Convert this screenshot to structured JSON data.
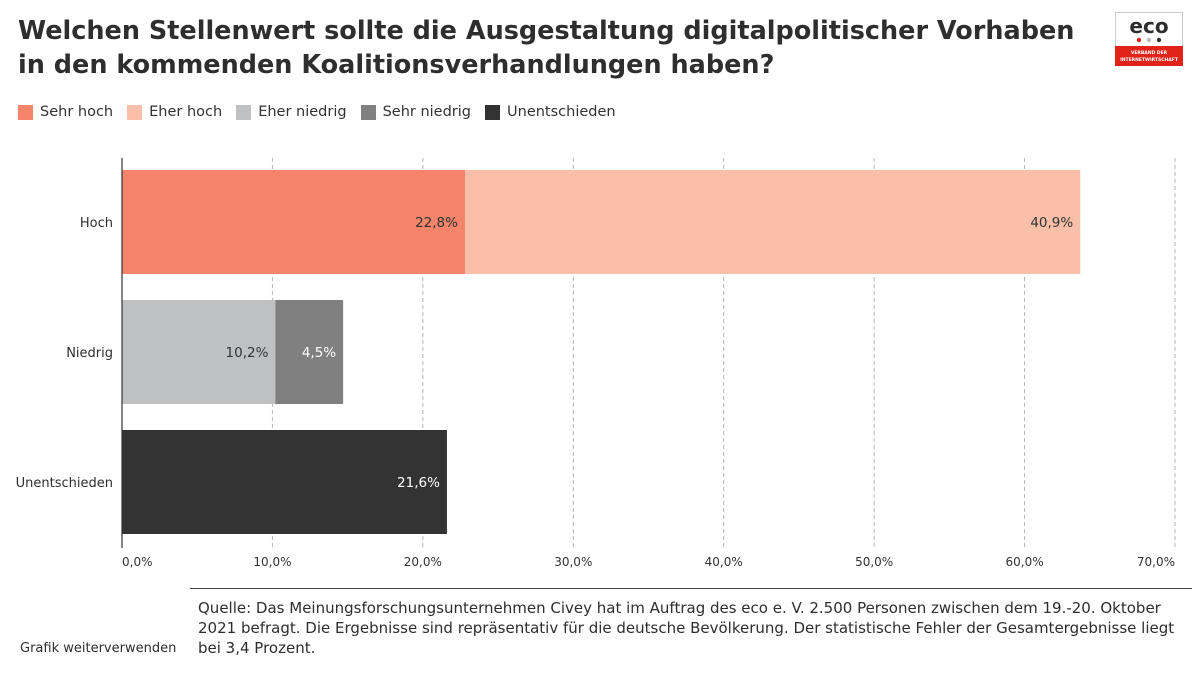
{
  "header": {
    "title": "Welchen Stellenwert sollte die Ausgestaltung digitalpolitischer Vorhaben in den kommenden Koalitionsverhandlungen haben?"
  },
  "logo": {
    "text": "eco",
    "subtitle_line1": "VERBAND DER",
    "subtitle_line2": "INTERNETWIRTSCHAFT",
    "color": "#e2231a"
  },
  "legend": [
    {
      "label": "Sehr hoch",
      "color": "#f4856a"
    },
    {
      "label": "Eher hoch",
      "color": "#f9bfa8"
    },
    {
      "label": "Eher niedrig",
      "color": "#bfc0c2"
    },
    {
      "label": "Sehr niedrig",
      "color": "#808080"
    },
    {
      "label": "Unentschieden",
      "color": "#333333"
    }
  ],
  "chart_data": {
    "type": "bar",
    "orientation": "horizontal",
    "stacked": true,
    "title": "Welchen Stellenwert sollte die Ausgestaltung digitalpolitischer Vorhaben in den kommenden Koalitionsverhandlungen haben?",
    "categories": [
      "Hoch",
      "Niedrig",
      "Unentschieden"
    ],
    "series": [
      {
        "name": "Sehr hoch",
        "color": "#f4856a",
        "label_color": "#333333",
        "values": [
          22.8,
          null,
          null
        ],
        "labels": [
          "22,8%",
          "",
          ""
        ]
      },
      {
        "name": "Eher hoch",
        "color": "#f9bfa8",
        "label_color": "#333333",
        "values": [
          40.9,
          null,
          null
        ],
        "labels": [
          "40,9%",
          "",
          ""
        ]
      },
      {
        "name": "Eher niedrig",
        "color": "#bfc0c2",
        "label_color": "#333333",
        "values": [
          null,
          10.2,
          null
        ],
        "labels": [
          "",
          "10,2%",
          ""
        ]
      },
      {
        "name": "Sehr niedrig",
        "color": "#808080",
        "label_color": "#ffffff",
        "values": [
          null,
          4.5,
          null
        ],
        "labels": [
          "",
          "4,5%",
          ""
        ]
      },
      {
        "name": "Unentschieden",
        "color": "#333333",
        "label_color": "#ffffff",
        "values": [
          null,
          null,
          21.6
        ],
        "labels": [
          "",
          "",
          "21,6%"
        ]
      }
    ],
    "xlim": [
      0,
      70
    ],
    "xticks": [
      0,
      10,
      20,
      30,
      40,
      50,
      60,
      70
    ],
    "xtick_labels": [
      "0,0%",
      "10,0%",
      "20,0%",
      "30,0%",
      "40,0%",
      "50,0%",
      "60,0%",
      "70,0%"
    ],
    "xlabel": "",
    "ylabel": "",
    "grid": "vertical dashed",
    "legend_position": "top-left"
  },
  "footer": {
    "source": "Quelle: Das Meinungsforschungsunternehmen Civey hat im Auftrag des eco e. V. 2.500 Personen zwischen dem 19.-20. Oktober 2021 befragt. Die Ergebnisse sind repräsentativ für die deutsche Bevölkerung. Der statistische Fehler der Gesamtergebnisse liegt bei 3,4 Prozent.",
    "reuse_link": "Grafik weiterverwenden"
  }
}
